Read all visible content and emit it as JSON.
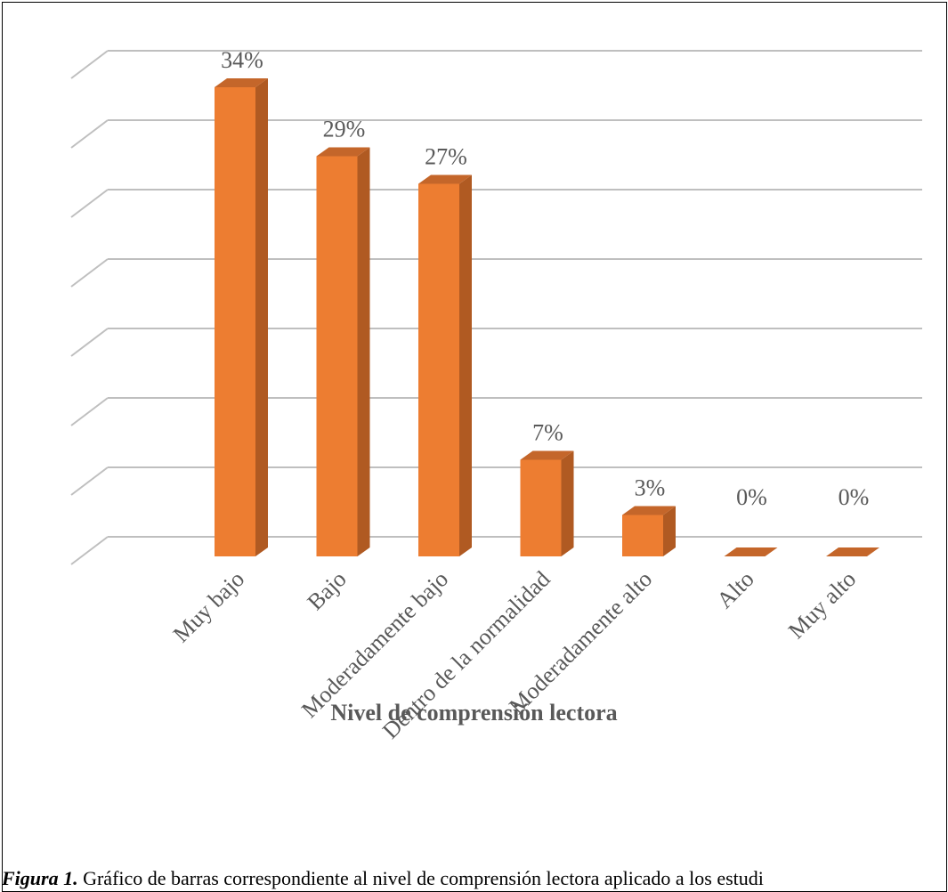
{
  "chart_data": {
    "type": "bar",
    "style": "3d-column",
    "categories": [
      "Muy bajo",
      "Bajo",
      "Moderadamente bajo",
      "Dentro de la normalidad",
      "Moderadamente alto",
      "Alto",
      "Muy alto"
    ],
    "values": [
      34,
      29,
      27,
      7,
      3,
      0,
      0
    ],
    "data_labels": [
      "34%",
      "29%",
      "27%",
      "7%",
      "3%",
      "0%",
      "0%"
    ],
    "xlabel": "Nivel de comprensión lectora",
    "ylabel": "",
    "ylim": [
      0,
      35
    ],
    "y_tick_labels_shown": false,
    "grid": true,
    "legend": "none",
    "colors": {
      "bar_front": "#ED7D31",
      "bar_side": "#B05A22",
      "bar_top": "#C4662A",
      "grid": "#BFBFBF",
      "text": "#595959"
    }
  },
  "caption": {
    "label": "Figura 1.",
    "text": " Gráfico de barras correspondiente al nivel de comprensión lectora aplicado a los estudi"
  }
}
